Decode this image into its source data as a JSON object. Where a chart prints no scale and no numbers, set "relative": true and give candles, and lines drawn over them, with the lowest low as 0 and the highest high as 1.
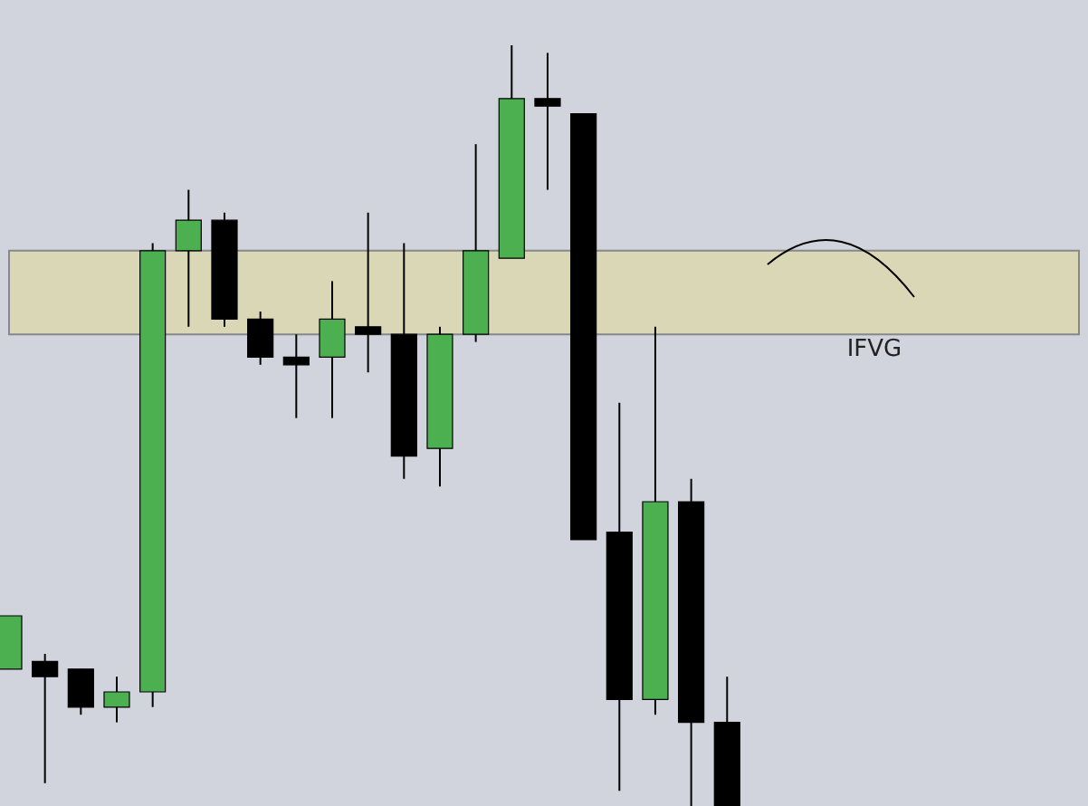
{
  "chart_data": {
    "type": "candlestick",
    "relative": true,
    "categories": [
      null,
      null,
      null,
      null,
      null,
      null,
      null,
      null,
      null,
      null,
      null,
      null,
      null,
      null,
      null,
      null,
      null,
      null,
      null,
      null,
      null
    ],
    "ohlc": [
      [
        0.18,
        0.25,
        0.18,
        0.25
      ],
      [
        0.19,
        0.2,
        0.03,
        0.17
      ],
      [
        0.18,
        0.18,
        0.12,
        0.13
      ],
      [
        0.13,
        0.17,
        0.11,
        0.15
      ],
      [
        0.15,
        0.74,
        0.13,
        0.73
      ],
      [
        0.73,
        0.81,
        0.63,
        0.77
      ],
      [
        0.77,
        0.78,
        0.63,
        0.64
      ],
      [
        0.64,
        0.65,
        0.58,
        0.59
      ],
      [
        0.59,
        0.62,
        0.51,
        0.58
      ],
      [
        0.59,
        0.69,
        0.51,
        0.64
      ],
      [
        0.63,
        0.78,
        0.57,
        0.62
      ],
      [
        0.62,
        0.74,
        0.43,
        0.46
      ],
      [
        0.47,
        0.63,
        0.42,
        0.62
      ],
      [
        0.62,
        0.87,
        0.61,
        0.73
      ],
      [
        0.72,
        1,
        0.72,
        0.93
      ],
      [
        0.93,
        0.99,
        0.81,
        0.92
      ],
      [
        0.91,
        0.91,
        0.35,
        0.35
      ],
      [
        0.36,
        0.53,
        0.02,
        0.14
      ],
      [
        0.14,
        0.63,
        0.12,
        0.4
      ],
      [
        0.4,
        0.43,
        0,
        0.11
      ],
      [
        0.11,
        0.17,
        0,
        0
      ]
    ],
    "colors": [
      "#4caf50",
      "#000000",
      "#000000",
      "#4caf50",
      "#4caf50",
      "#4caf50",
      "#000000",
      "#000000",
      "#000000",
      "#4caf50",
      "#000000",
      "#000000",
      "#4caf50",
      "#4caf50",
      "#4caf50",
      "#000000",
      "#000000",
      "#000000",
      "#4caf50",
      "#000000",
      "#000000"
    ],
    "bands": [
      {
        "axis": "y",
        "from": 0.62,
        "to": 0.73,
        "label": "IFVG",
        "color": "#d9d7b5"
      }
    ]
  }
}
